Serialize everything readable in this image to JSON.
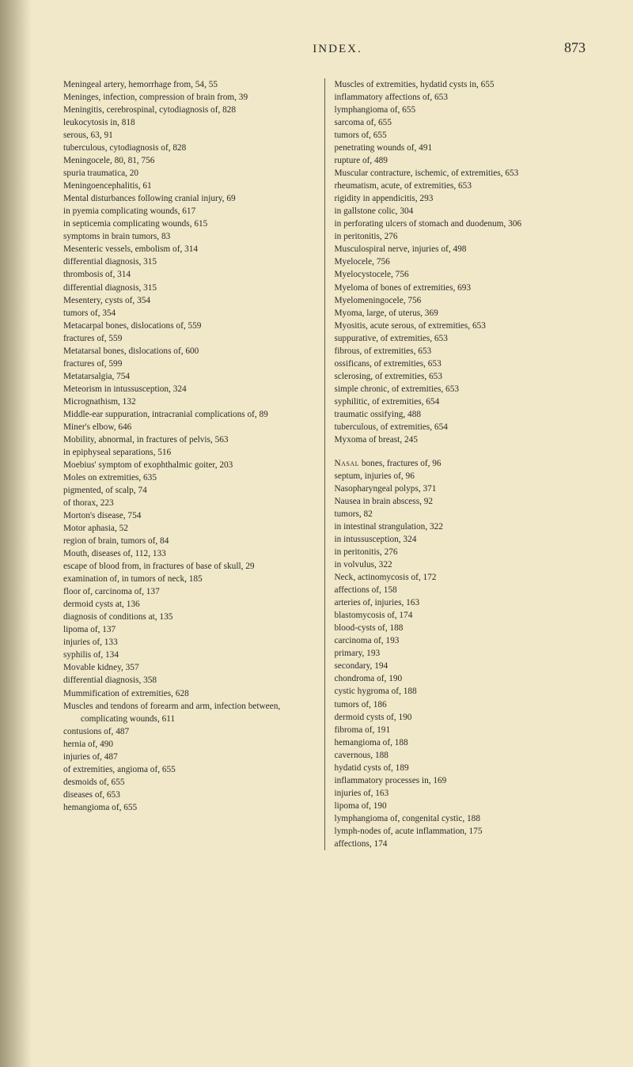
{
  "header": {
    "title": "INDEX.",
    "page_number": "873"
  },
  "left": [
    "Meningeal artery, hemorrhage from, 54, 55",
    "Meninges, infection, compression of brain from, 39",
    "Meningitis, cerebrospinal, cytodiagnosis of, 828",
    "leukocytosis in, 818",
    "serous, 63, 91",
    "tuberculous, cytodiagnosis of, 828",
    "Meningocele, 80, 81, 756",
    "spuria traumatica, 20",
    "Meningoencephalitis, 61",
    "Mental disturbances following cranial injury, 69",
    "in pyemia complicating wounds, 617",
    "in septicemia complicating wounds, 615",
    "symptoms in brain tumors, 83",
    "Mesenteric vessels, embolism of, 314",
    "differential diagnosis, 315",
    "thrombosis of, 314",
    "differential diagnosis, 315",
    "Mesentery, cysts of, 354",
    "tumors of, 354",
    "Metacarpal bones, dislocations of, 559",
    "fractures of, 559",
    "Metatarsal bones, dislocations of, 600",
    "fractures of, 599",
    "Metatarsalgia, 754",
    "Meteorism in intussusception, 324",
    "Micrognathism, 132",
    "Middle-ear suppuration, intracranial complications of, 89",
    "Miner's elbow, 646",
    "Mobility, abnormal, in fractures of pelvis, 563",
    "in epiphyseal separations, 516",
    "Moebius' symptom of exophthalmic goiter, 203",
    "Moles on extremities, 635",
    "pigmented, of scalp, 74",
    "of thorax, 223",
    "Morton's disease, 754",
    "Motor aphasia, 52",
    "region of brain, tumors of, 84",
    "Mouth, diseases of, 112, 133",
    "escape of blood from, in fractures of base of skull, 29",
    "examination of, in tumors of neck, 185",
    "floor of, carcinoma of, 137",
    "dermoid cysts at, 136",
    "diagnosis of conditions at, 135",
    "lipoma of, 137",
    "injuries of, 133",
    "syphilis of, 134",
    "Movable kidney, 357",
    "differential diagnosis, 358",
    "Mummification of extremities, 628",
    "Muscles and tendons of forearm and arm, infection between, complicating wounds, 611",
    "contusions of, 487",
    "hernia of, 490",
    "injuries of, 487",
    "of extremities, angioma of, 655",
    "desmoids of, 655",
    "diseases of, 653",
    "hemangioma of, 655"
  ],
  "right_a": [
    "Muscles of extremities, hydatid cysts in, 655",
    "inflammatory affections of, 653",
    "lymphangioma of, 655",
    "sarcoma of, 655",
    "tumors of, 655",
    "penetrating wounds of, 491",
    "rupture of, 489",
    "Muscular contracture, ischemic, of extremities, 653",
    "rheumatism, acute, of extremities, 653",
    "rigidity in appendicitis, 293",
    "in gallstone colic, 304",
    "in perforating ulcers of stomach and duodenum, 306",
    "in peritonitis, 276",
    "Musculospiral nerve, injuries of, 498",
    "Myelocele, 756",
    "Myelocystocele, 756",
    "Myeloma of bones of extremities, 693",
    "Myelomeningocele, 756",
    "Myoma, large, of uterus, 369",
    "Myositis, acute serous, of extremities, 653",
    "suppurative, of extremities, 653",
    "fibrous, of extremities, 653",
    "ossificans, of extremities, 653",
    "sclerosing, of extremities, 653",
    "simple chronic, of extremities, 653",
    "syphilitic, of extremities, 654",
    "traumatic ossifying, 488",
    "tuberculous, of extremities, 654",
    "Myxoma of breast, 245"
  ],
  "right_b_first": {
    "sc": "Nasal",
    "rest": " bones, fractures of, 96"
  },
  "right_b": [
    "septum, injuries of, 96",
    "Nasopharyngeal polyps, 371",
    "Nausea in brain abscess, 92",
    "tumors, 82",
    "in intestinal strangulation, 322",
    "in intussusception, 324",
    "in peritonitis, 276",
    "in volvulus, 322",
    "Neck, actinomycosis of, 172",
    "affections of, 158",
    "arteries of, injuries, 163",
    "blastomycosis of, 174",
    "blood-cysts of, 188",
    "carcinoma of, 193",
    "primary, 193",
    "secondary, 194",
    "chondroma of, 190",
    "cystic hygroma of, 188",
    "tumors of, 186",
    "dermoid cysts of, 190",
    "fibroma of, 191",
    "hemangioma of, 188",
    "cavernous, 188",
    "hydatid cysts of, 189",
    "inflammatory processes in, 169",
    "injuries of, 163",
    "lipoma of, 190",
    "lymphangioma of, congenital cystic, 188",
    "lymph-nodes of, acute inflammation, 175",
    "affections, 174"
  ]
}
